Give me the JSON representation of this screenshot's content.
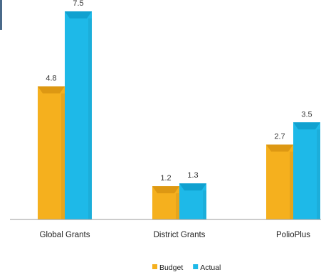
{
  "chart_data": {
    "type": "bar",
    "categories": [
      "Global Grants",
      "District Grants",
      "PolioPlus"
    ],
    "series": [
      {
        "name": "Budget",
        "values": [
          4.8,
          1.2,
          2.7
        ],
        "color": "#F5B01E",
        "color_top": "#D89412"
      },
      {
        "name": "Actual",
        "values": [
          7.5,
          1.3,
          3.5
        ],
        "color": "#1EB9E8",
        "color_top": "#0E9CCB"
      }
    ],
    "ylim": [
      0,
      7.5
    ],
    "grid": false,
    "legend_position": "bottom"
  }
}
